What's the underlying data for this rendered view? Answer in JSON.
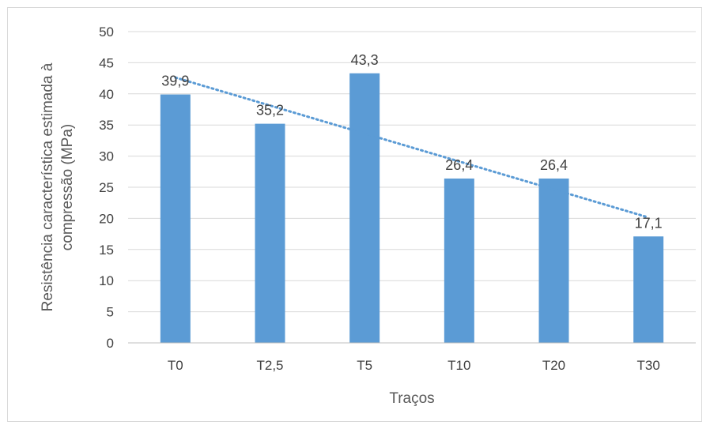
{
  "chart_data": {
    "type": "bar",
    "categories": [
      "T0",
      "T2,5",
      "T5",
      "T10",
      "T20",
      "T30"
    ],
    "values": [
      39.9,
      35.2,
      43.3,
      26.4,
      26.4,
      17.1
    ],
    "value_labels": [
      "39,9",
      "35,2",
      "43,3",
      "26,4",
      "26,4",
      "17,1"
    ],
    "xlabel": "Traços",
    "ylabel_lines": [
      "Resistência característica estimada à",
      "compressão (MPa)"
    ],
    "ylim": [
      0,
      50
    ],
    "yticks": [
      0,
      5,
      10,
      15,
      20,
      25,
      30,
      35,
      40,
      45,
      50
    ],
    "grid": true,
    "trendline": {
      "type": "linear",
      "style": "dotted"
    },
    "colors": {
      "bar": "#5b9bd5",
      "trend": "#5b9bd5",
      "grid": "#d9d9d9",
      "axis": "#bfbfbf"
    }
  }
}
